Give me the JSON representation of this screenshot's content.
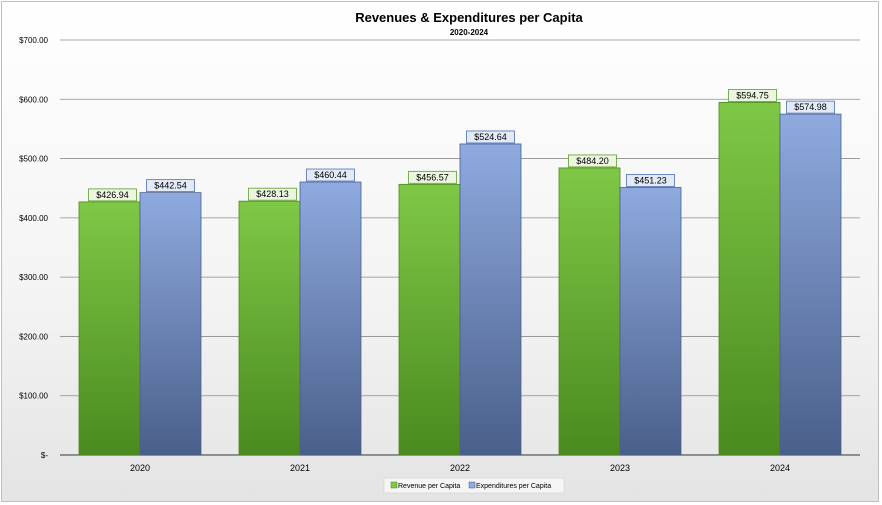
{
  "chart_data": {
    "type": "bar",
    "title": "Revenues & Expenditures per Capita",
    "subtitle": "2020-2024",
    "categories": [
      "2020",
      "2021",
      "2022",
      "2023",
      "2024"
    ],
    "series": [
      {
        "name": "Revenue per Capita",
        "values": [
          426.94,
          428.13,
          456.57,
          484.2,
          594.75
        ],
        "labels": [
          "$426.94",
          "$428.13",
          "$456.57",
          "$484.20",
          "$594.75"
        ],
        "color": "#7fc846",
        "color_dark": "#4a8a1f",
        "label_border": "#5c9e2a",
        "label_bg": "#ebf5df"
      },
      {
        "name": "Expenditures per Capita",
        "values": [
          442.54,
          460.44,
          524.64,
          451.23,
          574.98
        ],
        "labels": [
          "$442.54",
          "$460.44",
          "$524.64",
          "$451.23",
          "$574.98"
        ],
        "color": "#8eaadf",
        "color_dark": "#4a5f8a",
        "label_border": "#4f6fb5",
        "label_bg": "#e3eaf7"
      }
    ],
    "ylim": [
      0,
      700
    ],
    "yticks": [
      0,
      100,
      200,
      300,
      400,
      500,
      600,
      700
    ],
    "ytick_labels": [
      "$-",
      "$100.00",
      "$200.00",
      "$300.00",
      "$400.00",
      "$500.00",
      "$600.00",
      "$700.00"
    ],
    "grid": true,
    "legend_position": "bottom"
  }
}
